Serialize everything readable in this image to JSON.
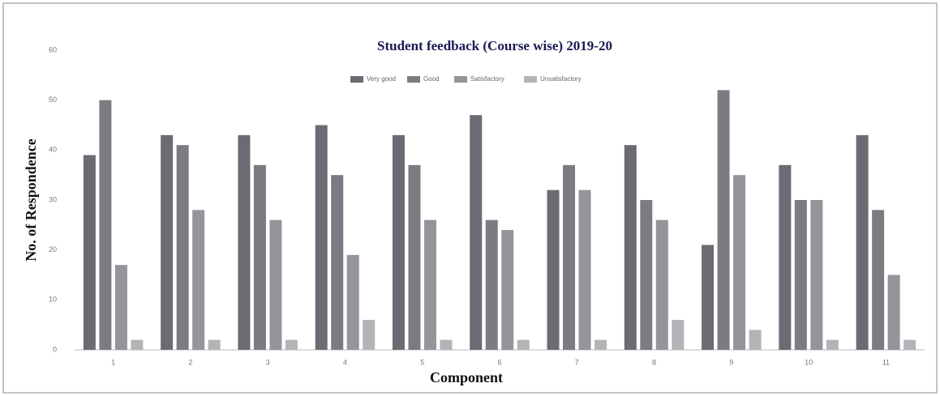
{
  "chart_data": {
    "type": "bar",
    "title": "Student feedback (Course wise) 2019-20",
    "xlabel": "Component",
    "ylabel": "No. of Respondence",
    "categories": [
      "1",
      "2",
      "3",
      "4",
      "5",
      "6",
      "7",
      "8",
      "9",
      "10",
      "11"
    ],
    "series": [
      {
        "name": "Very good",
        "color": "#6b6b73",
        "values": [
          39,
          43,
          43,
          45,
          43,
          47,
          32,
          41,
          21,
          37,
          43
        ]
      },
      {
        "name": "Good",
        "color": "#7b7b82",
        "values": [
          50,
          41,
          37,
          35,
          37,
          26,
          37,
          30,
          52,
          30,
          28
        ]
      },
      {
        "name": "Satisfactory",
        "color": "#94949a",
        "values": [
          17,
          28,
          26,
          19,
          26,
          24,
          32,
          26,
          35,
          30,
          15
        ]
      },
      {
        "name": "Unsatisfactory",
        "color": "#b4b4b8",
        "values": [
          2,
          2,
          2,
          6,
          2,
          2,
          2,
          6,
          4,
          2,
          2
        ]
      }
    ],
    "ylim": [
      0,
      60
    ],
    "yticks": [
      0,
      10,
      20,
      30,
      40,
      50,
      60
    ],
    "legend": "top"
  }
}
